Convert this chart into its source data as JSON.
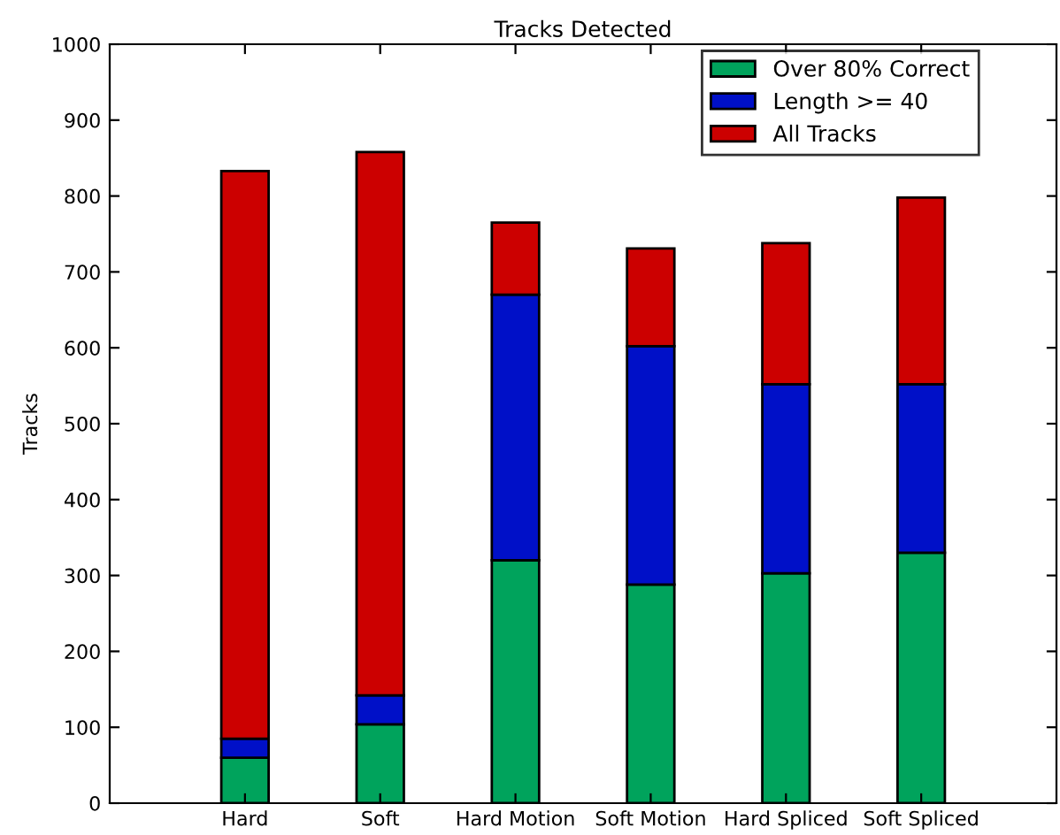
{
  "chart_data": {
    "type": "bar",
    "title": "Tracks Detected",
    "ylabel": "Tracks",
    "stacked": true,
    "categories": [
      "Hard",
      "Soft",
      "Hard Motion",
      "Soft Motion",
      "Hard Spliced",
      "Soft Spliced"
    ],
    "series": [
      {
        "name": "Over 80% Correct",
        "color": "#00a35c",
        "values": [
          60,
          104,
          320,
          288,
          303,
          330
        ]
      },
      {
        "name": "Length >= 40",
        "color": "#0010c8",
        "values": [
          25,
          38,
          350,
          314,
          249,
          222
        ]
      },
      {
        "name": "All Tracks",
        "color": "#cc0000",
        "values": [
          748,
          716,
          95,
          129,
          186,
          246
        ]
      }
    ],
    "ylim": [
      0,
      1000
    ],
    "yticks": [
      0,
      100,
      200,
      300,
      400,
      500,
      600,
      700,
      800,
      900,
      1000
    ],
    "legend": "top right",
    "grid": false
  }
}
